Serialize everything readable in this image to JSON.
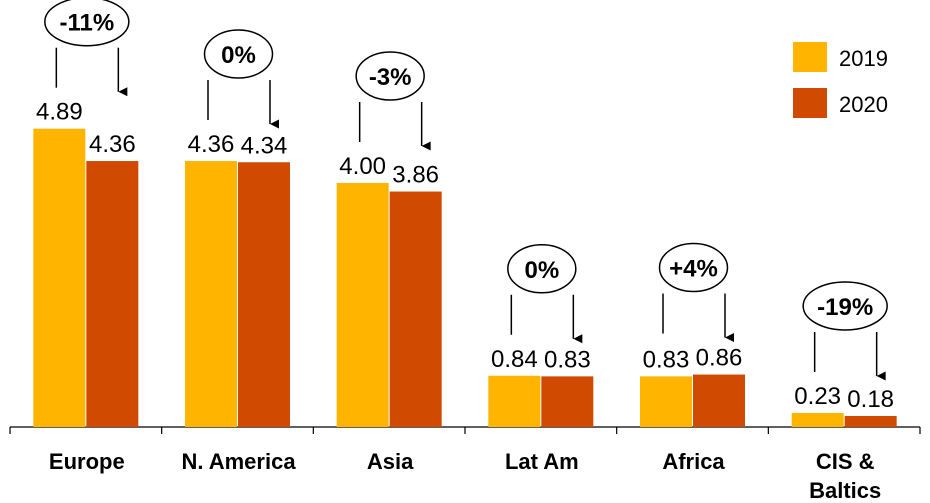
{
  "chart_data": {
    "type": "bar",
    "categories": [
      "Europe",
      "N. America",
      "Asia",
      "Lat Am",
      "Africa",
      "CIS & Baltics"
    ],
    "series": [
      {
        "name": "2019",
        "values": [
          4.89,
          4.36,
          4.0,
          0.84,
          0.83,
          0.23
        ],
        "labels": [
          "4.89",
          "4.36",
          "4.00",
          "0.84",
          "0.83",
          "0.23"
        ]
      },
      {
        "name": "2020",
        "values": [
          4.36,
          4.34,
          3.86,
          0.83,
          0.86,
          0.18
        ],
        "labels": [
          "4.36",
          "4.34",
          "3.86",
          "0.83",
          "0.86",
          "0.18"
        ]
      }
    ],
    "change_labels": [
      "-11%",
      "0%",
      "-3%",
      "0%",
      "+4%",
      "-19%"
    ],
    "title": "",
    "xlabel": "",
    "ylabel": "",
    "ylim": [
      0,
      5
    ],
    "grid": false,
    "legend_position": "top-right",
    "colors": {
      "2019": "#FFB400",
      "2020": "#D04A02"
    }
  }
}
